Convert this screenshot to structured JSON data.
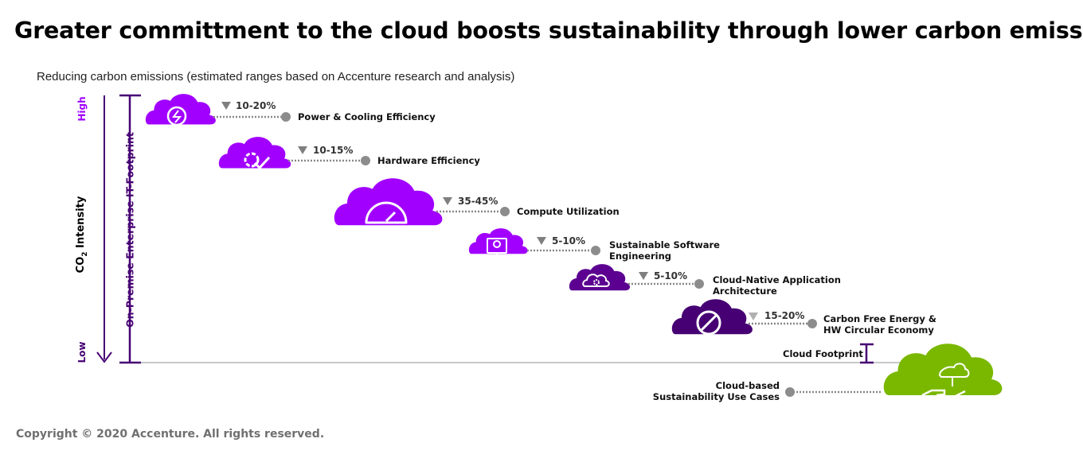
{
  "title": "Greater committment to the cloud boosts sustainability through lower carbon emissions",
  "subtitle": "Reducing carbon emissions (estimated ranges based on Accenture research and analysis)",
  "axis": {
    "high": "High",
    "low": "Low",
    "co2_prefix": "CO",
    "co2_sub": "2",
    "co2_suffix": " Intensity",
    "on_premise": "On-Premise Enterprise IT-Footprint",
    "cloud_footprint": "Cloud Footprint"
  },
  "levers": [
    {
      "range": "10-20%",
      "name_line1": "Power & Cooling Efficiency",
      "name_line2": "",
      "icon": "power-icon",
      "color": "#a100ff"
    },
    {
      "range": "10-15%",
      "name_line1": "Hardware Efficiency",
      "name_line2": "",
      "icon": "gear-check-icon",
      "color": "#a100ff"
    },
    {
      "range": "35-45%",
      "name_line1": "Compute Utilization",
      "name_line2": "",
      "icon": "gauge-icon",
      "color": "#a100ff"
    },
    {
      "range": "5-10%",
      "name_line1": "Sustainable Software",
      "name_line2": "Engineering",
      "icon": "monitor-bulb-icon",
      "color": "#a100ff"
    },
    {
      "range": "5-10%",
      "name_line1": "Cloud-Native Application",
      "name_line2": "Architecture",
      "icon": "cloud-gear-icon",
      "color": "#5c0091"
    },
    {
      "range": "15-20%",
      "name_line1": "Carbon Free Energy &",
      "name_line2": "HW Circular Economy",
      "icon": "no-symbol-icon",
      "color": "#460073"
    }
  ],
  "sustainability": {
    "name_line1": "Cloud-based",
    "name_line2": "Sustainability Use Cases",
    "icon": "hand-plant-icon",
    "color": "#7ab800"
  },
  "copyright": "Copyright © 2020 Accenture. All rights reserved."
}
